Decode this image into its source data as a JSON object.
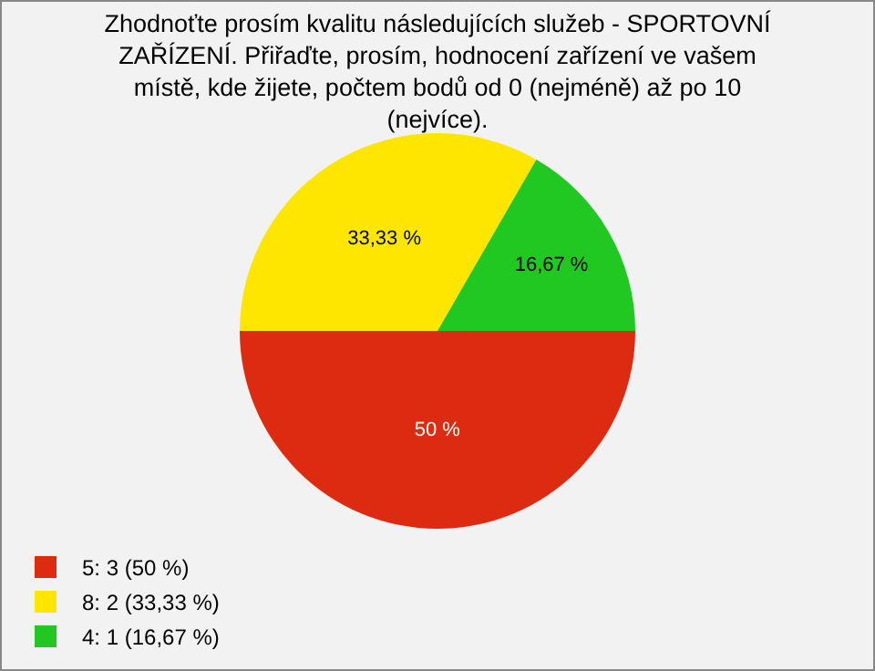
{
  "chart_data": {
    "type": "pie",
    "title": "Zhodnoťte prosím kvalitu následujících služeb - SPORTOVNÍ ZAŘÍZENÍ. Přiřaďte, prosím, hodnocení zařízení ve vašem místě, kde žijete, počtem bodů od 0 (nejméně) až po 10 (nejvíce).",
    "categories": [
      "5: 3 (50 %)",
      "8: 2 (33,33 %)",
      "4: 1 (16,67 %)"
    ],
    "values": [
      50,
      33.33,
      16.67
    ],
    "colors": [
      "#dd2b12",
      "#ffe600",
      "#22c822"
    ],
    "value_labels": [
      "50 %",
      "33,33 %",
      "16,67 %"
    ],
    "legend": "bottom left"
  }
}
